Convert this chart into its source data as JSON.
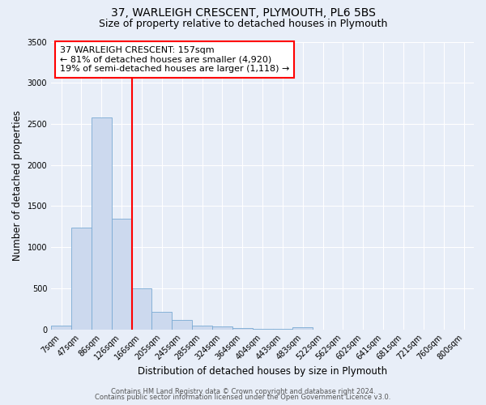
{
  "title": "37, WARLEIGH CRESCENT, PLYMOUTH, PL6 5BS",
  "subtitle": "Size of property relative to detached houses in Plymouth",
  "xlabel": "Distribution of detached houses by size in Plymouth",
  "ylabel": "Number of detached properties",
  "bin_labels": [
    "7sqm",
    "47sqm",
    "86sqm",
    "126sqm",
    "166sqm",
    "205sqm",
    "245sqm",
    "285sqm",
    "324sqm",
    "364sqm",
    "404sqm",
    "443sqm",
    "483sqm",
    "522sqm",
    "562sqm",
    "602sqm",
    "641sqm",
    "681sqm",
    "721sqm",
    "760sqm",
    "800sqm"
  ],
  "bar_values": [
    50,
    1240,
    2580,
    1350,
    500,
    210,
    110,
    50,
    35,
    20,
    5,
    5,
    30,
    0,
    0,
    0,
    0,
    0,
    0,
    0,
    0
  ],
  "bar_color": "#ccd9ee",
  "bar_edge_color": "#7aaad4",
  "vline_x": 3.5,
  "vline_color": "red",
  "annotation_text": "37 WARLEIGH CRESCENT: 157sqm\n← 81% of detached houses are smaller (4,920)\n19% of semi-detached houses are larger (1,118) →",
  "annotation_box_color": "white",
  "annotation_box_edge_color": "red",
  "ylim": [
    0,
    3500
  ],
  "yticks": [
    0,
    500,
    1000,
    1500,
    2000,
    2500,
    3000,
    3500
  ],
  "footer1": "Contains HM Land Registry data © Crown copyright and database right 2024.",
  "footer2": "Contains public sector information licensed under the Open Government Licence v3.0.",
  "bg_color": "#e8eef8",
  "plot_bg_color": "#e8eef8",
  "grid_color": "#ffffff",
  "title_fontsize": 10,
  "subtitle_fontsize": 9,
  "axis_label_fontsize": 8.5,
  "tick_fontsize": 7,
  "footer_fontsize": 6,
  "annotation_fontsize": 8
}
